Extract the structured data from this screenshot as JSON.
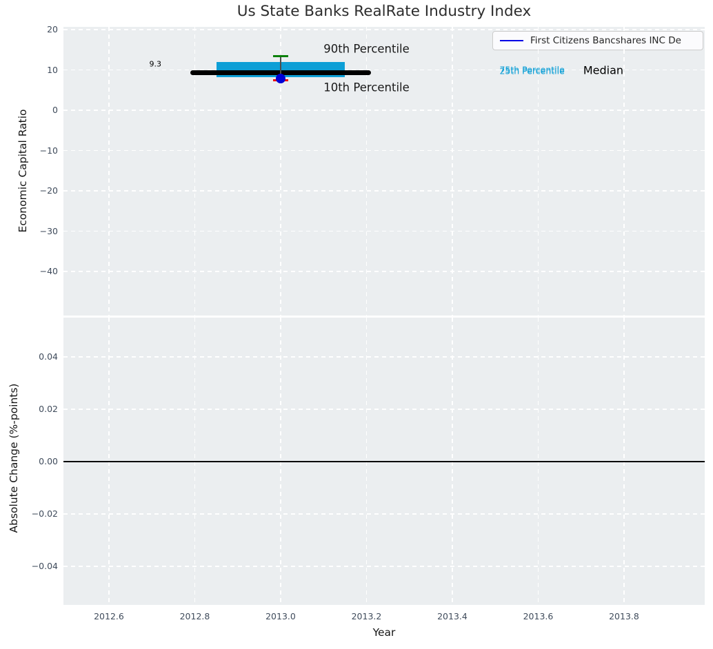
{
  "figure": {
    "title": "Us State Banks RealRate Industry Index",
    "xlabel": "Year",
    "top_ylabel": "Economic Capital Ratio",
    "bottom_ylabel": "Absolute Change (%-points)",
    "legend": {
      "label": "First Citizens Bancshares INC De",
      "line_color": "#0000e6"
    },
    "plot_background": "#ebeef0",
    "grid_color": "#ffffff",
    "tick_color": "#3f4b5b"
  },
  "chart_data": [
    {
      "type": "box",
      "panel": "top",
      "title": "Us State Banks RealRate Industry Index",
      "ylabel": "Economic Capital Ratio",
      "xlim": [
        2012.494,
        2013.988
      ],
      "ylim": [
        -50.9,
        20.7
      ],
      "grid": true,
      "legend_position": "upper right",
      "legend_entries": [
        "First Citizens Bancshares INC De"
      ],
      "xtick_values": [
        2012.6,
        2012.8,
        2013.0,
        2013.2,
        2013.4,
        2013.6,
        2013.8
      ],
      "yticks": [
        {
          "value": 20,
          "label": "20"
        },
        {
          "value": 10,
          "label": "10"
        },
        {
          "value": 0,
          "label": "0"
        },
        {
          "value": -10,
          "label": "−10"
        },
        {
          "value": -20,
          "label": "−20"
        },
        {
          "value": -30,
          "label": "−30"
        },
        {
          "value": -40,
          "label": "−40"
        }
      ],
      "box": {
        "x_center": 2013.0,
        "median": 9.3,
        "q1": 8.2,
        "q3": 12.0,
        "p90": 13.5,
        "p10": 7.4,
        "company_value": 7.9,
        "median_x_span": [
          2012.79,
          2013.21
        ],
        "box_x_span": [
          2012.85,
          2013.15
        ],
        "cap_x_span": [
          2012.982,
          2013.018
        ],
        "colors": {
          "box": "#0d9fd6",
          "median_line": "#000000",
          "p90_cap": "#0a8008",
          "p10_cap": "#f00000",
          "company_dot": "#0000d6",
          "whisker": "#4d4d4d"
        }
      },
      "annotations": [
        {
          "text": "9.3",
          "x": 2012.708,
          "y": 11.4,
          "color": "#000000",
          "size": 11,
          "align": "center"
        },
        {
          "text": "90th Percentile",
          "x": 2013.1,
          "y": 15.3,
          "color": "#1a1a1a",
          "size": 16.5,
          "align": "left"
        },
        {
          "text": "10th Percentile",
          "x": 2013.1,
          "y": 5.6,
          "color": "#1a1a1a",
          "size": 16.5,
          "align": "left"
        },
        {
          "text": "75th Percentile",
          "x": 2013.51,
          "y": 10.05,
          "color": "#0d9fd6",
          "size": 12.5,
          "align": "left"
        },
        {
          "text": "25th Percentile",
          "x": 2013.51,
          "y": 9.7,
          "color": "#0d9fd6",
          "size": 12.5,
          "align": "left"
        },
        {
          "text": "Median",
          "x": 2013.705,
          "y": 10.0,
          "color": "#000000",
          "size": 16,
          "align": "left"
        }
      ]
    },
    {
      "type": "line",
      "panel": "bottom",
      "ylabel": "Absolute Change (%-points)",
      "xlabel": "Year",
      "xlim": [
        2012.494,
        2013.988
      ],
      "ylim": [
        -0.0547,
        0.055
      ],
      "grid": true,
      "xticks": [
        {
          "value": 2012.6,
          "label": "2012.6"
        },
        {
          "value": 2012.8,
          "label": "2012.8"
        },
        {
          "value": 2013.0,
          "label": "2013.0"
        },
        {
          "value": 2013.2,
          "label": "2013.2"
        },
        {
          "value": 2013.4,
          "label": "2013.4"
        },
        {
          "value": 2013.6,
          "label": "2013.6"
        },
        {
          "value": 2013.8,
          "label": "2013.8"
        }
      ],
      "yticks": [
        {
          "value": 0.04,
          "label": "0.04"
        },
        {
          "value": 0.02,
          "label": "0.02"
        },
        {
          "value": 0.0,
          "label": "0.00"
        },
        {
          "value": -0.02,
          "label": "−0.02"
        },
        {
          "value": -0.04,
          "label": "−0.04"
        }
      ],
      "zero_line": {
        "value": 0.0,
        "color": "#000000",
        "width": 2
      },
      "series": []
    }
  ]
}
